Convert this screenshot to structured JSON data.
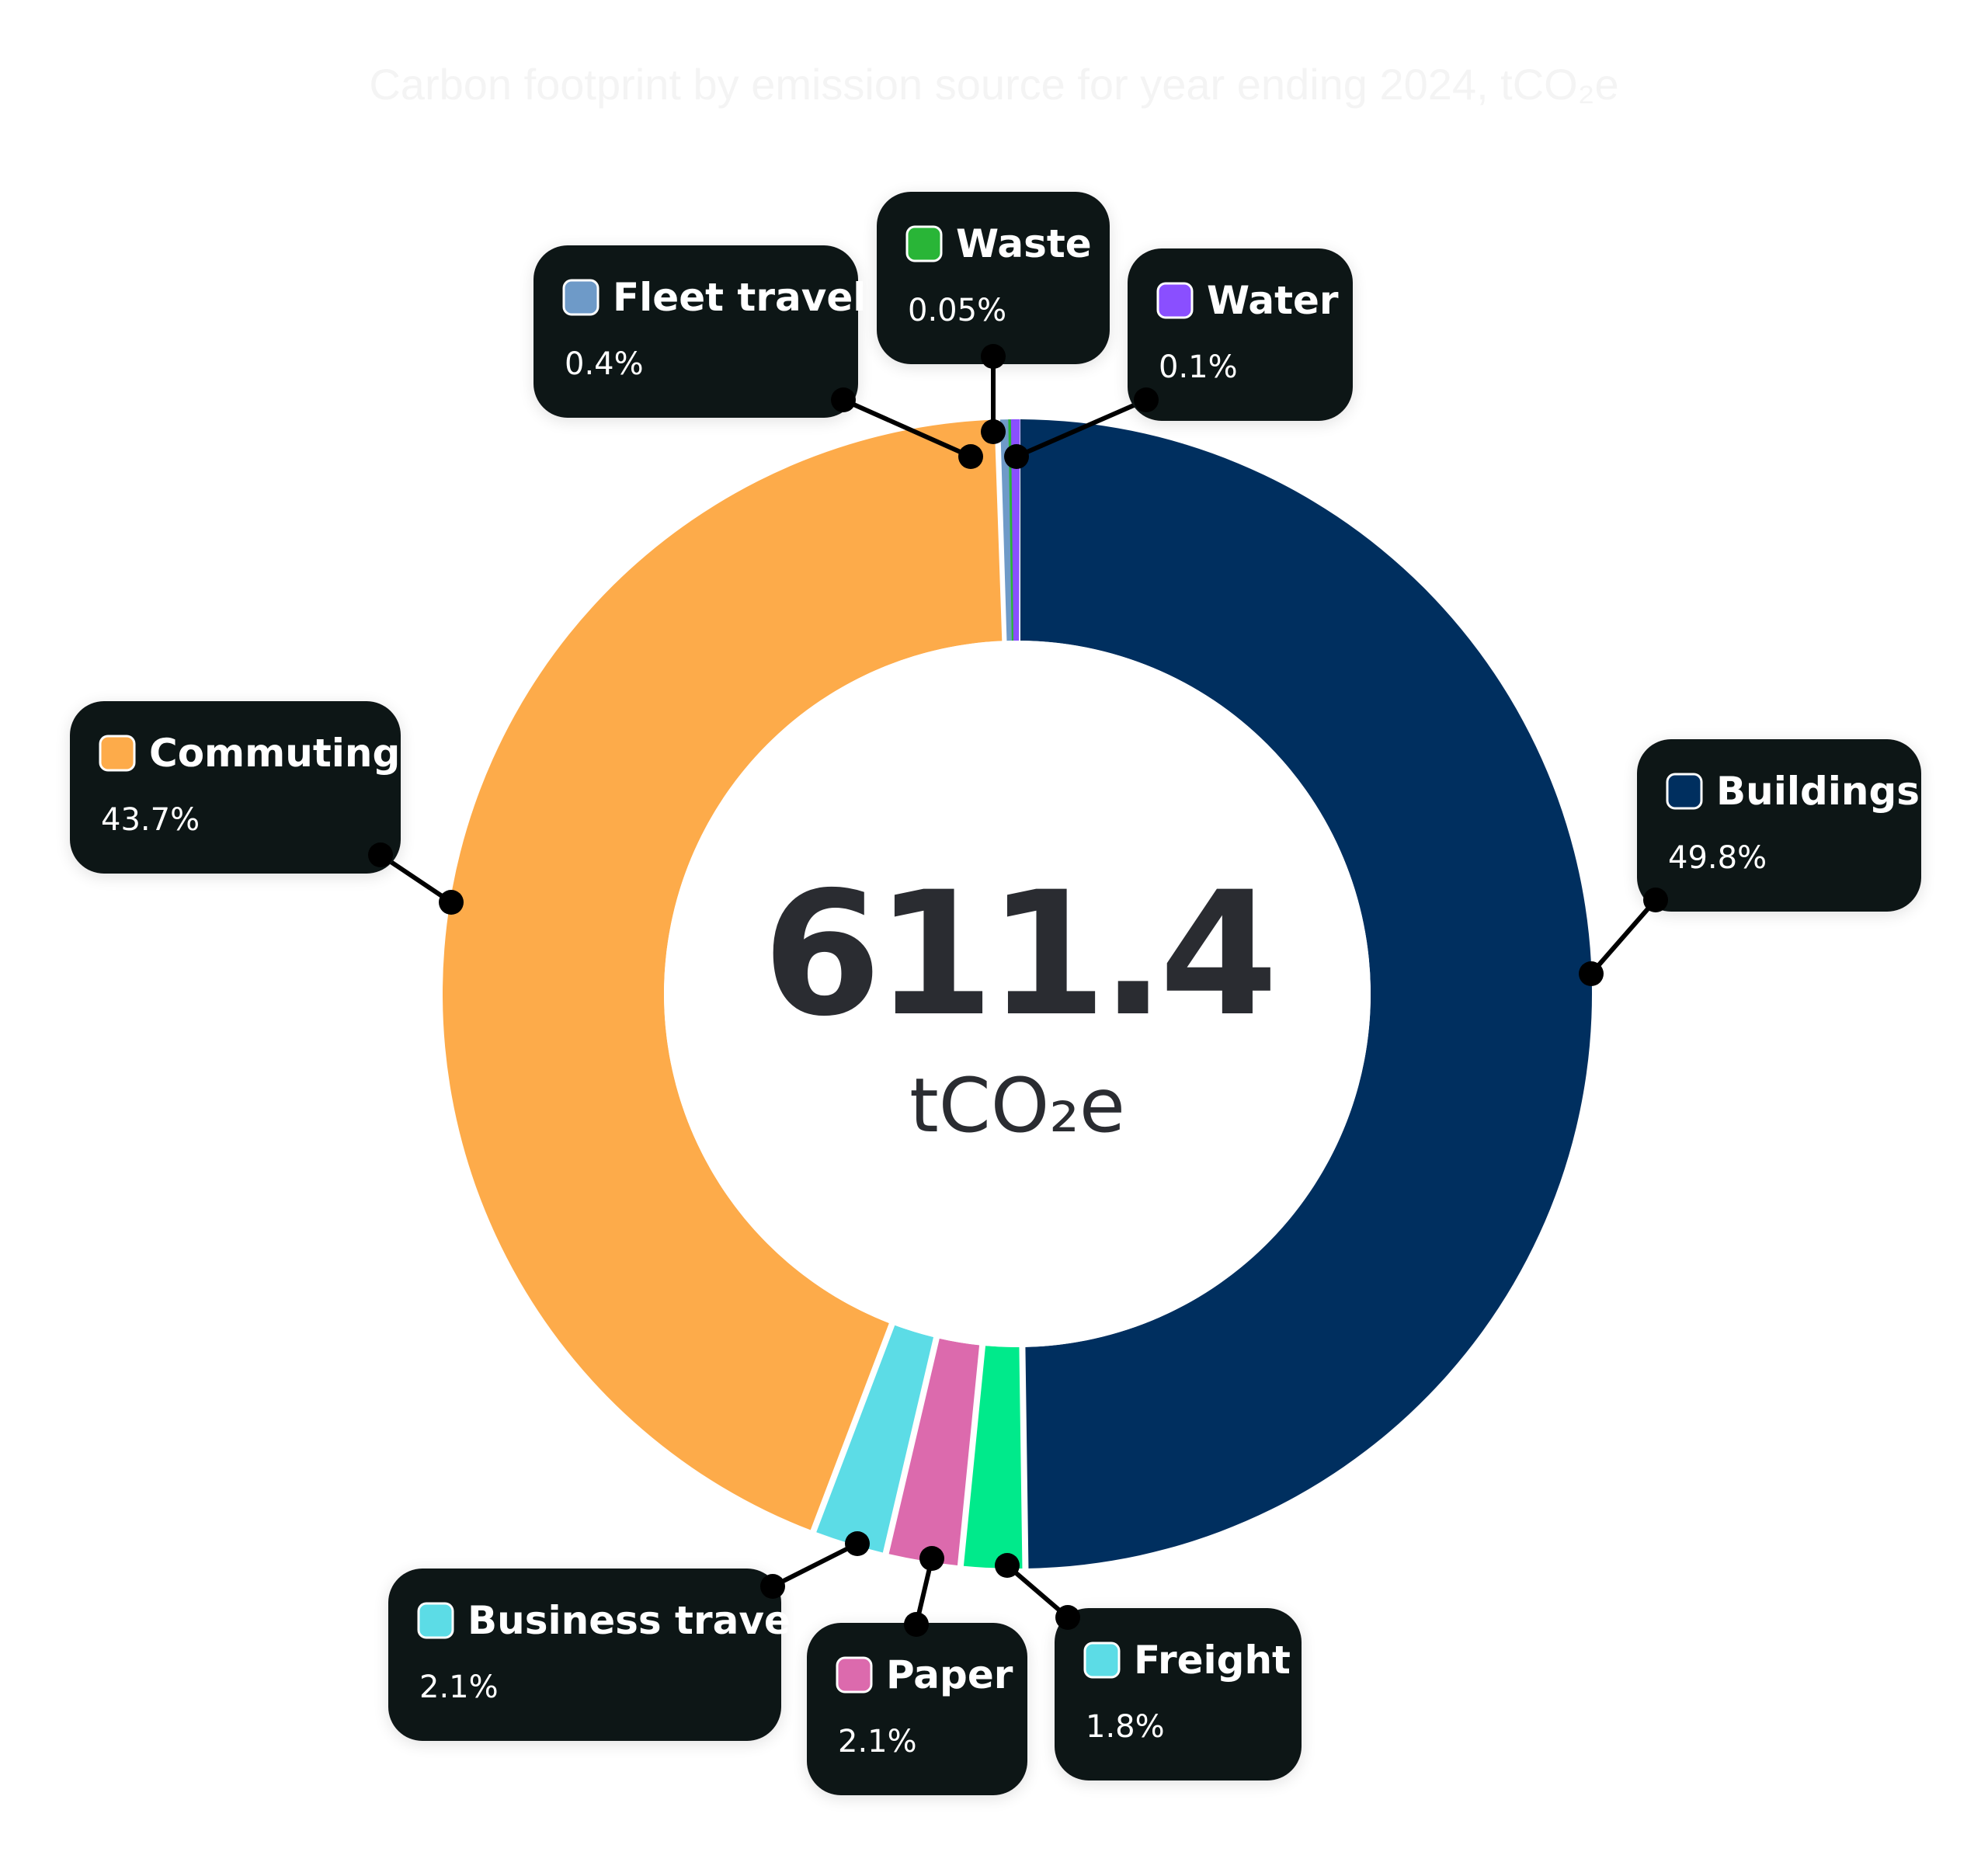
{
  "chart_data": {
    "type": "pie",
    "style": "donut",
    "title": "Carbon footprint by emission source for year ending 2024, tCO₂e",
    "center_value": "611.4",
    "center_unit": "tCO₂e",
    "slices": [
      {
        "label": "Buildings",
        "value": 49.8,
        "value_label": "49.8%",
        "color": "#002f5f"
      },
      {
        "label": "Freight",
        "value": 1.8,
        "value_label": "1.8%",
        "color": "#00ea8b",
        "legend_color": "#5cdce6"
      },
      {
        "label": "Paper",
        "value": 2.1,
        "value_label": "2.1%",
        "color": "#dc6aad"
      },
      {
        "label": "Business travel",
        "value": 2.1,
        "value_label": "2.1%",
        "color": "#5cdce6"
      },
      {
        "label": "Commuting",
        "value": 43.7,
        "value_label": "43.7%",
        "color": "#fdab4a"
      },
      {
        "label": "Fleet travel",
        "value": 0.4,
        "value_label": "0.4%",
        "color": "#6e9ac8"
      },
      {
        "label": "Waste",
        "value": 0.05,
        "value_label": "0.05%",
        "color": "#29b537"
      },
      {
        "label": "Water",
        "value": 0.1,
        "value_label": "0.1%",
        "color": "#8a4fff"
      }
    ]
  }
}
